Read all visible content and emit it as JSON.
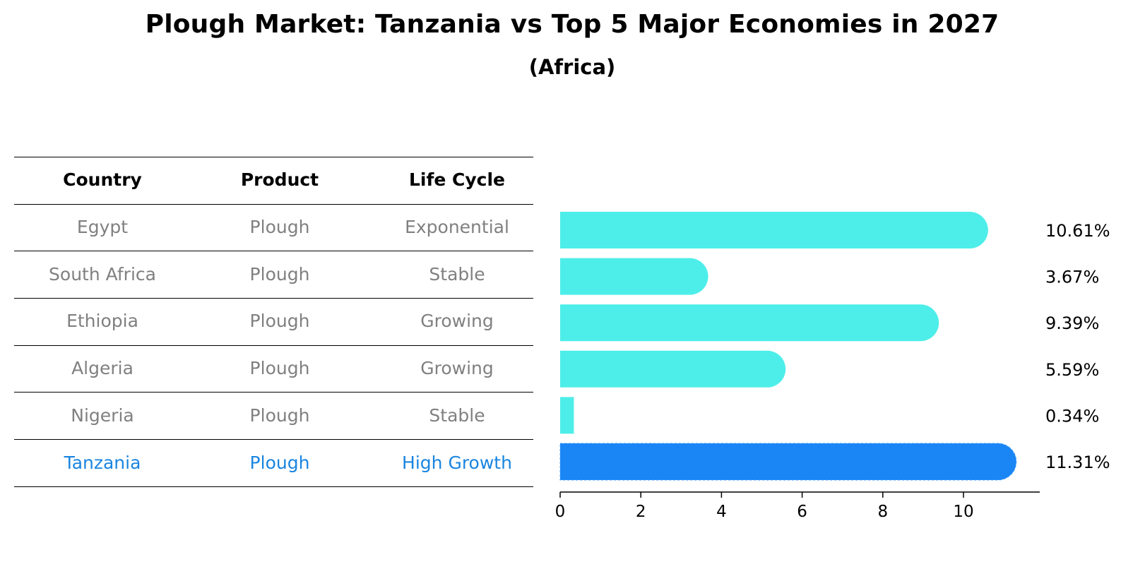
{
  "title": "Plough Market: Tanzania vs Top 5 Major Economies in 2027",
  "subtitle": "(Africa)",
  "colors": {
    "bar_default": "#4deee9",
    "bar_highlight": "#1a85f5",
    "text_muted": "#808080",
    "text_highlight": "#1a85e0"
  },
  "table": {
    "headers": [
      "Country",
      "Product",
      "Life Cycle"
    ],
    "rows": [
      {
        "country": "Egypt",
        "product": "Plough",
        "life_cycle": "Exponential",
        "highlight": false
      },
      {
        "country": "South Africa",
        "product": "Plough",
        "life_cycle": "Stable",
        "highlight": false
      },
      {
        "country": "Ethiopia",
        "product": "Plough",
        "life_cycle": "Growing",
        "highlight": false
      },
      {
        "country": "Algeria",
        "product": "Plough",
        "life_cycle": "Growing",
        "highlight": false
      },
      {
        "country": "Nigeria",
        "product": "Plough",
        "life_cycle": "Stable",
        "highlight": false
      },
      {
        "country": "Tanzania",
        "product": "Plough",
        "life_cycle": "High Growth",
        "highlight": true
      }
    ]
  },
  "chart_data": {
    "type": "bar",
    "orientation": "horizontal",
    "categories": [
      "Egypt",
      "South Africa",
      "Ethiopia",
      "Algeria",
      "Nigeria",
      "Tanzania"
    ],
    "values": [
      10.61,
      3.67,
      9.39,
      5.59,
      0.34,
      11.31
    ],
    "value_labels": [
      "10.61%",
      "3.67%",
      "9.39%",
      "5.59%",
      "0.34%",
      "11.31%"
    ],
    "highlight_category": "Tanzania",
    "xticks": [
      0,
      2,
      4,
      6,
      8,
      10
    ],
    "xlim": [
      0,
      11.9
    ],
    "title": "Plough Market: Tanzania vs Top 5 Major Economies in 2027",
    "xlabel": "",
    "ylabel": ""
  }
}
